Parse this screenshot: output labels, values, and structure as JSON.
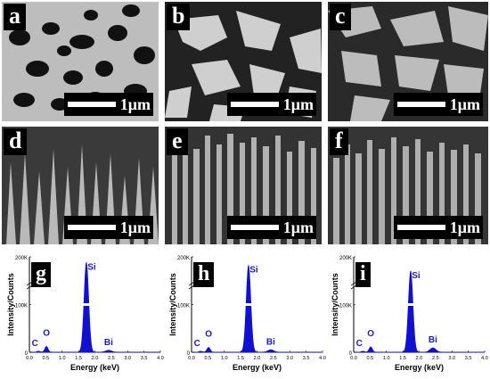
{
  "sem_panels": [
    {
      "label": "a",
      "scale": "1μm"
    },
    {
      "label": "b",
      "scale": "1μm"
    },
    {
      "label": "c",
      "scale": "1μm"
    },
    {
      "label": "d",
      "scale": "1μm"
    },
    {
      "label": "e",
      "scale": "1μm"
    },
    {
      "label": "f",
      "scale": "1μm"
    }
  ],
  "eds_common": {
    "xlabel": "Energy (keV)",
    "ylabel": "Intensity/Counts",
    "ytop": "200K",
    "ymid": "100K",
    "yzero": "0",
    "xticks": [
      "0.0",
      "0.5",
      "1.0",
      "1.5",
      "2.0",
      "2.5",
      "3.0",
      "3.5",
      "4.0"
    ],
    "peak_labels": {
      "C": "C",
      "O": "O",
      "Si": "Si",
      "Bi": "Bi"
    }
  },
  "chart_data": [
    {
      "type": "area",
      "label": "g",
      "x": [
        0.28,
        0.52,
        1.74,
        2.42
      ],
      "peaks": [
        "C",
        "O",
        "Si",
        "Bi"
      ],
      "values": [
        2000,
        12000,
        188000,
        4000
      ],
      "xlim": [
        0,
        4
      ],
      "ylim": [
        0,
        200000
      ],
      "xlabel": "Energy (keV)",
      "ylabel": "Intensity/Counts"
    },
    {
      "type": "area",
      "label": "h",
      "x": [
        0.28,
        0.52,
        1.74,
        2.42
      ],
      "peaks": [
        "C",
        "O",
        "Si",
        "Bi"
      ],
      "values": [
        2000,
        10000,
        182000,
        5000
      ],
      "xlim": [
        0,
        4
      ],
      "ylim": [
        0,
        200000
      ],
      "xlabel": "Energy (keV)",
      "ylabel": "Intensity/Counts"
    },
    {
      "type": "area",
      "label": "i",
      "x": [
        0.28,
        0.52,
        1.74,
        2.42
      ],
      "peaks": [
        "C",
        "O",
        "Si",
        "Bi"
      ],
      "values": [
        2000,
        11000,
        170000,
        9000
      ],
      "xlim": [
        0,
        4
      ],
      "ylim": [
        0,
        200000
      ],
      "xlabel": "Energy (keV)",
      "ylabel": "Intensity/Counts"
    }
  ],
  "colors": {
    "spectrum": "#1010d0",
    "label_text": "#1a1acc"
  }
}
